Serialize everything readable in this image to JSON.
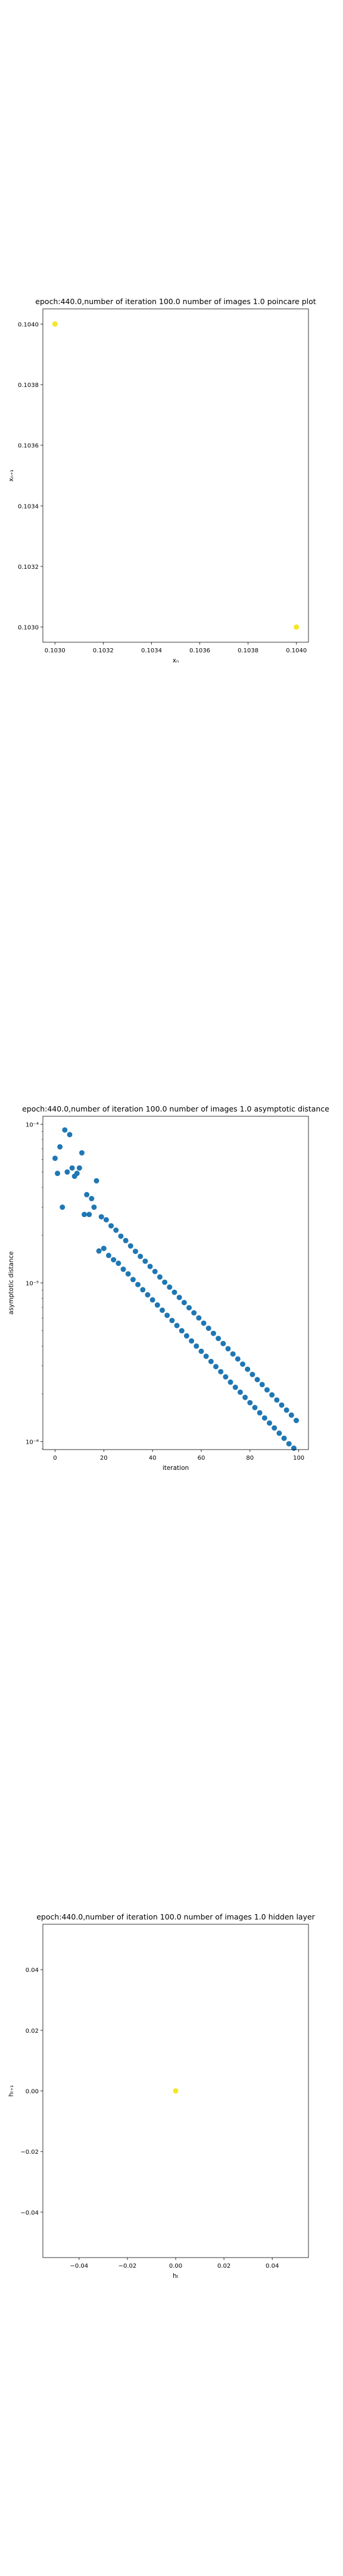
{
  "chart_data": [
    {
      "type": "scatter",
      "title": "epoch:440.0,number of iteration 100.0 number of images 1.0 poincare plot",
      "xlabel": "xₙ",
      "ylabel": "xₙ₊₁",
      "xlim": [
        0.10295,
        0.10405
      ],
      "ylim": [
        0.10295,
        0.10405
      ],
      "xticks": [
        0.103,
        0.1032,
        0.1034,
        0.1036,
        0.1038,
        0.104
      ],
      "xtick_labels": [
        "0.1030",
        "0.1032",
        "0.1034",
        "0.1036",
        "0.1038",
        "0.1040"
      ],
      "yticks": [
        0.103,
        0.1032,
        0.1034,
        0.1036,
        0.1038,
        0.104
      ],
      "ytick_labels": [
        "0.1030",
        "0.1032",
        "0.1034",
        "0.1036",
        "0.1038",
        "0.1040"
      ],
      "grid": false,
      "color": "#f5e626",
      "points": [
        {
          "x": 0.103,
          "y": 0.104
        },
        {
          "x": 0.104,
          "y": 0.103
        }
      ]
    },
    {
      "type": "scatter",
      "title": "epoch:440.0,number of iteration 100.0  number of images 1.0 asymptotic distance",
      "xlabel": "iteration",
      "ylabel": "asymptotic distance",
      "xlim": [
        -5,
        104
      ],
      "yscale": "log",
      "ylim_log10": [
        -6.05,
        -3.95
      ],
      "xticks": [
        0,
        20,
        40,
        60,
        80,
        100
      ],
      "xtick_labels": [
        "0",
        "20",
        "40",
        "60",
        "80",
        "100"
      ],
      "yticks_log10": [
        -4,
        -5,
        -6
      ],
      "ytick_labels": [
        "10⁻⁴",
        "10⁻⁵",
        "10⁻⁶"
      ],
      "grid": false,
      "color": "#1f77b4",
      "x": [
        0,
        1,
        2,
        3,
        4,
        5,
        6,
        7,
        8,
        9,
        10,
        11,
        12,
        13,
        14,
        15,
        16,
        17,
        18,
        19,
        20,
        21,
        22,
        23,
        24,
        25,
        26,
        27,
        28,
        29,
        30,
        31,
        32,
        33,
        34,
        35,
        36,
        37,
        38,
        39,
        40,
        41,
        42,
        43,
        44,
        45,
        46,
        47,
        48,
        49,
        50,
        51,
        52,
        53,
        54,
        55,
        56,
        57,
        58,
        59,
        60,
        61,
        62,
        63,
        64,
        65,
        66,
        67,
        68,
        69,
        70,
        71,
        72,
        73,
        74,
        75,
        76,
        77,
        78,
        79,
        80,
        81,
        82,
        83,
        84,
        85,
        86,
        87,
        88,
        89,
        90,
        91,
        92,
        93,
        94,
        95,
        96,
        97,
        98,
        99
      ],
      "y": [
        6.1e-05,
        4.9e-05,
        7.2e-05,
        3e-05,
        9.2e-05,
        5e-05,
        8.6e-05,
        5.3e-05,
        4.7e-05,
        4.9e-05,
        5.3e-05,
        6.6e-05,
        2.7e-05,
        3.6e-05,
        2.7e-05,
        3.4e-05,
        3e-05,
        4.4e-05,
        1.59e-05,
        2.61e-05,
        1.65e-05,
        2.5e-05,
        1.49e-05,
        2.29e-05,
        1.4e-05,
        2.15e-05,
        1.33e-05,
        1.97e-05,
        1.22e-05,
        1.85e-05,
        1.14e-05,
        1.71e-05,
        1.05e-05,
        1.58e-05,
        9.77e-06,
        1.47e-05,
        9.06e-06,
        1.37e-05,
        8.42e-06,
        1.27e-05,
        7.82e-06,
        1.18e-05,
        7.26e-06,
        1.09e-05,
        6.73e-06,
        1.01e-05,
        6.25e-06,
        9.41e-06,
        5.8e-06,
        8.73e-06,
        5.39e-06,
        8.1e-06,
        5e-06,
        7.52e-06,
        4.64e-06,
        6.98e-06,
        4.31e-06,
        6.48e-06,
        4e-06,
        6.02e-06,
        3.71e-06,
        5.58e-06,
        3.45e-06,
        5.18e-06,
        3.2e-06,
        4.81e-06,
        2.97e-06,
        4.47e-06,
        2.76e-06,
        4.15e-06,
        2.56e-06,
        3.85e-06,
        2.37e-06,
        3.57e-06,
        2.2e-06,
        3.32e-06,
        2.05e-06,
        3.08e-06,
        1.9e-06,
        2.86e-06,
        1.76e-06,
        2.65e-06,
        1.64e-06,
        2.46e-06,
        1.52e-06,
        2.29e-06,
        1.41e-06,
        2.12e-06,
        1.31e-06,
        1.97e-06,
        1.22e-06,
        1.83e-06,
        1.13e-06,
        1.7e-06,
        1.05e-06,
        1.58e-06,
        9.7e-07,
        1.47e-06,
        9.1e-07,
        1.36e-06
      ]
    },
    {
      "type": "scatter",
      "title": "epoch:440.0,number of iteration 100.0  number of images 1.0 hidden layer",
      "xlabel": "hₜ",
      "ylabel": "hₜ₊₁",
      "xlim": [
        -0.055,
        0.055
      ],
      "ylim": [
        -0.055,
        0.055
      ],
      "xticks": [
        -0.04,
        -0.02,
        0.0,
        0.02,
        0.04
      ],
      "xtick_labels": [
        "−0.04",
        "−0.02",
        "0.00",
        "0.02",
        "0.04"
      ],
      "yticks": [
        -0.04,
        -0.02,
        0.0,
        0.02,
        0.04
      ],
      "ytick_labels": [
        "−0.04",
        "−0.02",
        "0.00",
        "0.02",
        "0.04"
      ],
      "grid": false,
      "color": "#f5e626",
      "points": [
        {
          "x": 0.0,
          "y": 0.0
        }
      ]
    }
  ]
}
